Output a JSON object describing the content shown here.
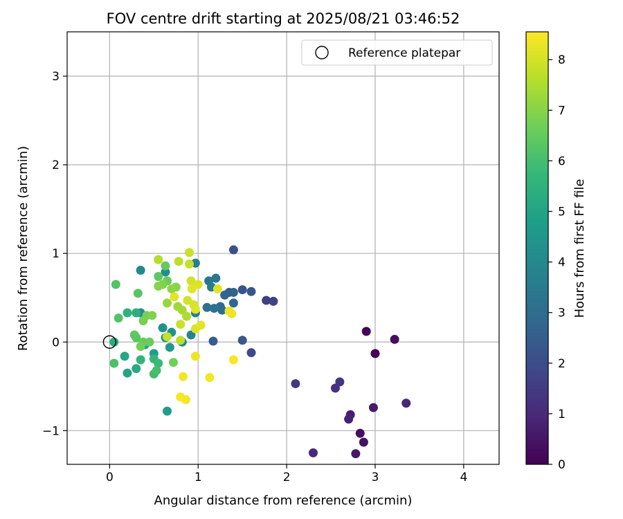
{
  "chart_data": {
    "type": "scatter",
    "title": "FOV centre drift starting at 2025/08/21 03:46:52",
    "xlabel": "Angular distance from reference (arcmin)",
    "ylabel": "Rotation from reference (arcmin)",
    "xlim": [
      -0.48,
      4.4
    ],
    "ylim": [
      -1.38,
      3.5
    ],
    "xticks": [
      0,
      1,
      2,
      3,
      4
    ],
    "xtick_labels": [
      "0",
      "1",
      "2",
      "3",
      "4"
    ],
    "yticks": [
      -1,
      0,
      1,
      2,
      3
    ],
    "ytick_labels": [
      "−1",
      "0",
      "1",
      "2",
      "3"
    ],
    "grid": true,
    "legend": {
      "placement": "top-right",
      "entries": [
        "Reference platepar"
      ]
    },
    "reference_point": {
      "x": 0,
      "y": 0,
      "marker": "open-circle",
      "name": "Reference platepar"
    },
    "colorbar": {
      "label": "Hours from first FF file",
      "colormap": "viridis",
      "range": [
        0,
        8.55
      ],
      "ticks": [
        0,
        1,
        2,
        3,
        4,
        5,
        6,
        7,
        8
      ],
      "tick_labels": [
        "0",
        "1",
        "2",
        "3",
        "4",
        "5",
        "6",
        "7",
        "8"
      ]
    },
    "points": [
      {
        "x": 2.9,
        "y": 0.12,
        "c": 0.15
      },
      {
        "x": 3.0,
        "y": -0.13,
        "c": 0.1
      },
      {
        "x": 3.22,
        "y": 0.03,
        "c": 0.3
      },
      {
        "x": 2.83,
        "y": -1.03,
        "c": 0.35
      },
      {
        "x": 2.87,
        "y": -1.13,
        "c": 0.4
      },
      {
        "x": 2.78,
        "y": -1.26,
        "c": 0.5
      },
      {
        "x": 2.98,
        "y": -0.74,
        "c": 0.6
      },
      {
        "x": 2.72,
        "y": -0.82,
        "c": 0.7
      },
      {
        "x": 2.7,
        "y": -0.87,
        "c": 0.8
      },
      {
        "x": 3.35,
        "y": -0.69,
        "c": 0.9
      },
      {
        "x": 2.3,
        "y": -1.25,
        "c": 1.0
      },
      {
        "x": 2.55,
        "y": -0.52,
        "c": 1.2
      },
      {
        "x": 2.6,
        "y": -0.45,
        "c": 1.3
      },
      {
        "x": 2.1,
        "y": -0.47,
        "c": 1.4
      },
      {
        "x": 1.77,
        "y": 0.47,
        "c": 1.6
      },
      {
        "x": 1.85,
        "y": 0.46,
        "c": 1.7
      },
      {
        "x": 1.6,
        "y": -0.12,
        "c": 1.9
      },
      {
        "x": 1.5,
        "y": 0.02,
        "c": 2.3
      },
      {
        "x": 1.17,
        "y": 0.01,
        "c": 2.5
      },
      {
        "x": 1.4,
        "y": 1.04,
        "c": 2.1
      },
      {
        "x": 1.5,
        "y": 0.59,
        "c": 2.2
      },
      {
        "x": 1.6,
        "y": 0.57,
        "c": 2.3
      },
      {
        "x": 1.35,
        "y": 0.56,
        "c": 2.5
      },
      {
        "x": 1.4,
        "y": 0.56,
        "c": 2.6
      },
      {
        "x": 1.3,
        "y": 0.53,
        "c": 2.7
      },
      {
        "x": 1.4,
        "y": 0.44,
        "c": 2.8
      },
      {
        "x": 1.25,
        "y": 0.4,
        "c": 2.9
      },
      {
        "x": 1.27,
        "y": 0.36,
        "c": 3.0
      },
      {
        "x": 1.1,
        "y": 0.39,
        "c": 3.1
      },
      {
        "x": 1.18,
        "y": 0.38,
        "c": 3.2
      },
      {
        "x": 1.2,
        "y": 0.72,
        "c": 3.3
      },
      {
        "x": 1.12,
        "y": 0.69,
        "c": 3.4
      },
      {
        "x": 1.15,
        "y": 0.62,
        "c": 3.5
      },
      {
        "x": 0.97,
        "y": 0.89,
        "c": 3.6
      },
      {
        "x": 0.97,
        "y": 0.33,
        "c": 3.7
      },
      {
        "x": 0.92,
        "y": 0.08,
        "c": 3.8
      },
      {
        "x": 0.82,
        "y": 0.0,
        "c": 3.9
      },
      {
        "x": 0.35,
        "y": 0.81,
        "c": 4.0
      },
      {
        "x": 0.35,
        "y": 0.33,
        "c": 4.1
      },
      {
        "x": 0.63,
        "y": 0.79,
        "c": 4.2
      },
      {
        "x": 0.6,
        "y": 0.16,
        "c": 4.3
      },
      {
        "x": 0.7,
        "y": 0.11,
        "c": 4.4
      },
      {
        "x": 0.63,
        "y": 0.05,
        "c": 4.5
      },
      {
        "x": 0.68,
        "y": -0.06,
        "c": 4.6
      },
      {
        "x": 0.65,
        "y": -0.78,
        "c": 4.7
      },
      {
        "x": 0.5,
        "y": -0.13,
        "c": 4.8
      },
      {
        "x": 0.4,
        "y": -0.03,
        "c": 4.9
      },
      {
        "x": 0.2,
        "y": -0.35,
        "c": 5.0
      },
      {
        "x": 0.17,
        "y": -0.16,
        "c": 5.1
      },
      {
        "x": 0.3,
        "y": -0.3,
        "c": 5.2
      },
      {
        "x": 0.05,
        "y": 0.0,
        "c": 5.3
      },
      {
        "x": 0.3,
        "y": 0.33,
        "c": 5.4
      },
      {
        "x": 0.2,
        "y": 0.33,
        "c": 5.5
      },
      {
        "x": 0.35,
        "y": -0.2,
        "c": 5.6
      },
      {
        "x": 0.5,
        "y": -0.19,
        "c": 5.7
      },
      {
        "x": 0.55,
        "y": -0.24,
        "c": 5.8
      },
      {
        "x": 0.5,
        "y": -0.36,
        "c": 5.9
      },
      {
        "x": 0.53,
        "y": -0.32,
        "c": 6.0
      },
      {
        "x": 0.05,
        "y": -0.24,
        "c": 6.1
      },
      {
        "x": 0.07,
        "y": 0.65,
        "c": 6.2
      },
      {
        "x": 0.32,
        "y": 0.55,
        "c": 6.3
      },
      {
        "x": 0.55,
        "y": 0.74,
        "c": 6.4
      },
      {
        "x": 0.63,
        "y": 0.86,
        "c": 6.5
      },
      {
        "x": 0.65,
        "y": 0.69,
        "c": 6.6
      },
      {
        "x": 0.72,
        "y": -0.23,
        "c": 6.7
      },
      {
        "x": 0.1,
        "y": 0.27,
        "c": 6.2
      },
      {
        "x": 0.3,
        "y": 0.05,
        "c": 6.3
      },
      {
        "x": 0.28,
        "y": 0.08,
        "c": 6.4
      },
      {
        "x": 0.38,
        "y": 0.0,
        "c": 6.5
      },
      {
        "x": 0.45,
        "y": 0.0,
        "c": 6.6
      },
      {
        "x": 0.35,
        "y": -0.05,
        "c": 6.7
      },
      {
        "x": 0.42,
        "y": 0.3,
        "c": 6.8
      },
      {
        "x": 0.48,
        "y": 0.3,
        "c": 6.9
      },
      {
        "x": 0.38,
        "y": 0.24,
        "c": 6.8
      },
      {
        "x": 0.6,
        "y": 0.65,
        "c": 6.9
      },
      {
        "x": 0.55,
        "y": 0.63,
        "c": 7.0
      },
      {
        "x": 0.75,
        "y": 0.62,
        "c": 7.0
      },
      {
        "x": 0.7,
        "y": 0.6,
        "c": 7.1
      },
      {
        "x": 0.65,
        "y": 0.44,
        "c": 7.2
      },
      {
        "x": 0.77,
        "y": 0.4,
        "c": 7.3
      },
      {
        "x": 0.82,
        "y": 0.36,
        "c": 7.4
      },
      {
        "x": 0.87,
        "y": 0.29,
        "c": 7.5
      },
      {
        "x": 0.55,
        "y": 0.93,
        "c": 7.6
      },
      {
        "x": 0.78,
        "y": 0.91,
        "c": 7.7
      },
      {
        "x": 0.9,
        "y": 0.88,
        "c": 7.8
      },
      {
        "x": 0.9,
        "y": 1.01,
        "c": 7.9
      },
      {
        "x": 0.92,
        "y": 0.69,
        "c": 8.0
      },
      {
        "x": 1.0,
        "y": 0.65,
        "c": 8.1
      },
      {
        "x": 0.73,
        "y": 0.51,
        "c": 8.2
      },
      {
        "x": 0.88,
        "y": 0.47,
        "c": 8.0
      },
      {
        "x": 0.8,
        "y": 0.2,
        "c": 7.9
      },
      {
        "x": 0.65,
        "y": 0.06,
        "c": 7.8
      },
      {
        "x": 0.8,
        "y": 0.02,
        "c": 7.7
      },
      {
        "x": 0.97,
        "y": 0.15,
        "c": 8.1
      },
      {
        "x": 1.03,
        "y": 0.19,
        "c": 8.2
      },
      {
        "x": 0.97,
        "y": -0.16,
        "c": 8.3
      },
      {
        "x": 0.83,
        "y": -0.39,
        "c": 8.4
      },
      {
        "x": 0.8,
        "y": -0.62,
        "c": 8.5
      },
      {
        "x": 0.86,
        "y": -0.65,
        "c": 8.45
      },
      {
        "x": 1.13,
        "y": -0.4,
        "c": 8.4
      },
      {
        "x": 1.4,
        "y": -0.2,
        "c": 8.5
      },
      {
        "x": 1.35,
        "y": 0.35,
        "c": 8.3
      },
      {
        "x": 1.38,
        "y": 0.32,
        "c": 8.35
      },
      {
        "x": 0.97,
        "y": 0.37,
        "c": 8.25
      },
      {
        "x": 0.93,
        "y": 0.6,
        "c": 8.2
      },
      {
        "x": 1.22,
        "y": 0.6,
        "c": 8.15
      },
      {
        "x": 0.95,
        "y": 0.42,
        "c": 8.1
      }
    ]
  }
}
